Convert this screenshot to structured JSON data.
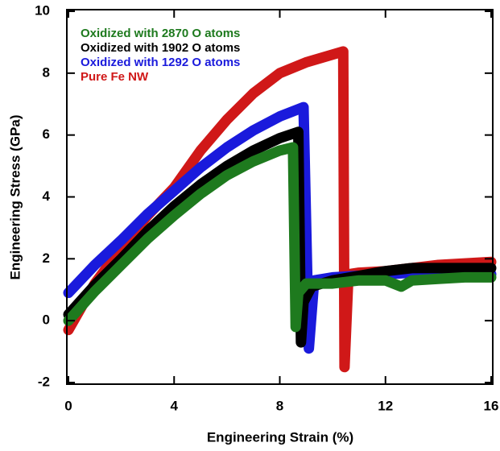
{
  "chart_data": {
    "type": "line",
    "x_label": "Engineering Strain (%)",
    "y_label": "Engineering Stress (GPa)",
    "xlim": [
      0,
      16
    ],
    "ylim": [
      -2,
      10
    ],
    "xticks": [
      0,
      4,
      8,
      12,
      16
    ],
    "yticks": [
      -2,
      0,
      2,
      4,
      6,
      8,
      10
    ],
    "series": [
      {
        "name": "Oxidized with 2870 O atoms",
        "color": "#1e7a1e",
        "x": [
          0,
          1,
          2,
          3,
          4,
          5,
          6,
          7,
          8,
          8.5,
          8.6,
          8.7,
          9.0,
          10,
          11,
          12,
          12.6,
          13,
          14,
          15,
          16
        ],
        "values": [
          0.0,
          0.95,
          1.8,
          2.65,
          3.4,
          4.1,
          4.7,
          5.15,
          5.5,
          5.6,
          -0.2,
          0.9,
          1.2,
          1.2,
          1.3,
          1.3,
          1.1,
          1.3,
          1.35,
          1.4,
          1.4
        ]
      },
      {
        "name": "Oxidized with 1902 O atoms",
        "color": "#000000",
        "x": [
          0,
          1,
          2,
          3,
          4,
          5,
          6,
          7,
          8,
          8.7,
          8.8,
          8.9,
          9.2,
          10,
          11,
          12,
          13,
          14,
          15,
          16
        ],
        "values": [
          0.2,
          1.15,
          2.0,
          2.9,
          3.7,
          4.4,
          5.0,
          5.5,
          5.9,
          6.1,
          -0.7,
          0.6,
          1.1,
          1.3,
          1.45,
          1.6,
          1.7,
          1.7,
          1.7,
          1.7
        ]
      },
      {
        "name": "Oxidized with 1292 O atoms",
        "color": "#1a1adc",
        "x": [
          0,
          1,
          2,
          3,
          4,
          5,
          6,
          7,
          8,
          8.9,
          9.1,
          9.3,
          10,
          11,
          12,
          13,
          14,
          15,
          16
        ],
        "values": [
          0.9,
          1.8,
          2.6,
          3.45,
          4.2,
          4.95,
          5.6,
          6.15,
          6.6,
          6.9,
          -0.9,
          1.3,
          1.4,
          1.45,
          1.5,
          1.55,
          1.6,
          1.55,
          1.5
        ]
      },
      {
        "name": "Pure Fe NW",
        "color": "#d01818",
        "x": [
          0,
          1,
          2,
          3,
          4,
          5,
          6,
          7,
          8,
          9,
          10,
          10.4,
          10.45,
          10.6,
          11,
          12,
          13,
          14,
          15,
          16
        ],
        "values": [
          -0.3,
          1.2,
          2.35,
          3.4,
          4.3,
          5.5,
          6.5,
          7.35,
          8.0,
          8.35,
          8.6,
          8.7,
          -1.5,
          1.5,
          1.55,
          1.6,
          1.7,
          1.8,
          1.85,
          1.9
        ]
      }
    ]
  }
}
